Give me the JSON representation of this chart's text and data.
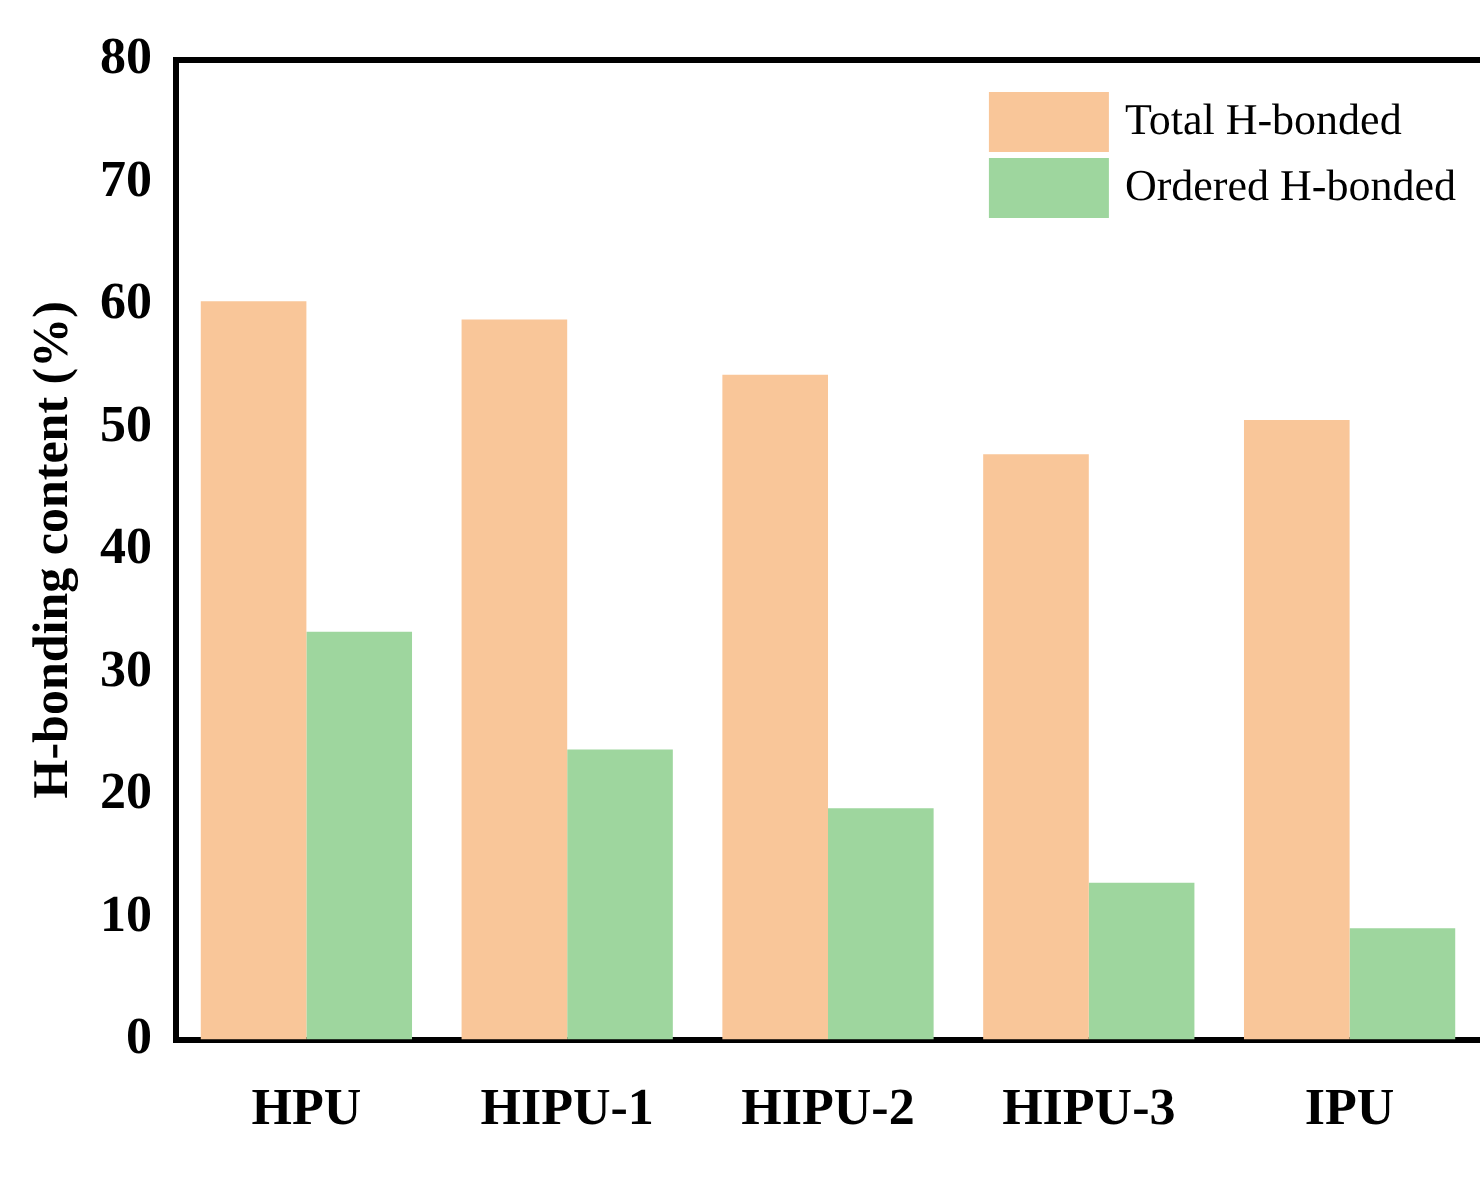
{
  "chart_data": {
    "type": "bar",
    "ylabel": "H-bonding content (%)",
    "categories": [
      "HPU",
      "HIPU-1",
      "HIPU-2",
      "HIPU-3",
      "IPU"
    ],
    "series": [
      {
        "name": "Total H-bonded",
        "color": "#f9c699",
        "values": [
          60.3,
          58.8,
          54.3,
          47.8,
          50.6
        ]
      },
      {
        "name": "Ordered H-bonded",
        "color": "#9ed69e",
        "values": [
          33.3,
          23.7,
          18.9,
          12.8,
          9.1
        ]
      }
    ],
    "ylim": [
      0,
      80
    ],
    "yticks": [
      0,
      10,
      20,
      30,
      40,
      50,
      60,
      70,
      80
    ],
    "grid": false,
    "legend": "top right"
  }
}
